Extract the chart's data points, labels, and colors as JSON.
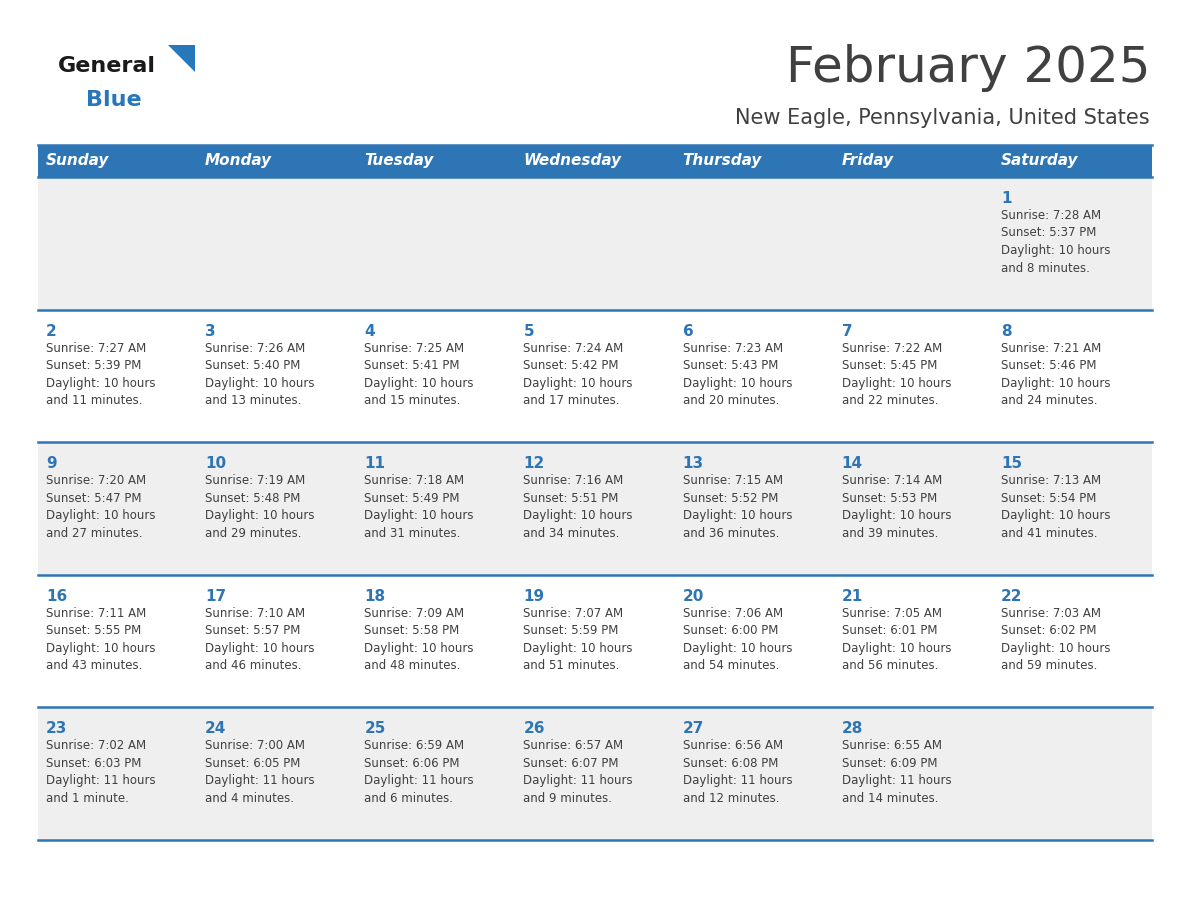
{
  "title": "February 2025",
  "subtitle": "New Eagle, Pennsylvania, United States",
  "header_bg_color": "#2E75B6",
  "header_text_color": "#FFFFFF",
  "day_names": [
    "Sunday",
    "Monday",
    "Tuesday",
    "Wednesday",
    "Thursday",
    "Friday",
    "Saturday"
  ],
  "bg_color": "#FFFFFF",
  "cell_bg_week1": "#F0F0F0",
  "cell_bg_week2": "#FFFFFF",
  "cell_bg_week3": "#F0F0F0",
  "cell_bg_week4": "#FFFFFF",
  "cell_bg_week5": "#F0F0F0",
  "text_color": "#404040",
  "day_num_color": "#2E75B6",
  "separator_color": "#2E75B6",
  "logo_general_color": "#1A1A1A",
  "logo_blue_color": "#2777BC",
  "title_fontsize": 36,
  "subtitle_fontsize": 15,
  "header_fontsize": 11,
  "day_num_fontsize": 11,
  "info_fontsize": 8.5,
  "weeks": [
    [
      {
        "day": null,
        "info": null
      },
      {
        "day": null,
        "info": null
      },
      {
        "day": null,
        "info": null
      },
      {
        "day": null,
        "info": null
      },
      {
        "day": null,
        "info": null
      },
      {
        "day": null,
        "info": null
      },
      {
        "day": 1,
        "info": "Sunrise: 7:28 AM\nSunset: 5:37 PM\nDaylight: 10 hours\nand 8 minutes."
      }
    ],
    [
      {
        "day": 2,
        "info": "Sunrise: 7:27 AM\nSunset: 5:39 PM\nDaylight: 10 hours\nand 11 minutes."
      },
      {
        "day": 3,
        "info": "Sunrise: 7:26 AM\nSunset: 5:40 PM\nDaylight: 10 hours\nand 13 minutes."
      },
      {
        "day": 4,
        "info": "Sunrise: 7:25 AM\nSunset: 5:41 PM\nDaylight: 10 hours\nand 15 minutes."
      },
      {
        "day": 5,
        "info": "Sunrise: 7:24 AM\nSunset: 5:42 PM\nDaylight: 10 hours\nand 17 minutes."
      },
      {
        "day": 6,
        "info": "Sunrise: 7:23 AM\nSunset: 5:43 PM\nDaylight: 10 hours\nand 20 minutes."
      },
      {
        "day": 7,
        "info": "Sunrise: 7:22 AM\nSunset: 5:45 PM\nDaylight: 10 hours\nand 22 minutes."
      },
      {
        "day": 8,
        "info": "Sunrise: 7:21 AM\nSunset: 5:46 PM\nDaylight: 10 hours\nand 24 minutes."
      }
    ],
    [
      {
        "day": 9,
        "info": "Sunrise: 7:20 AM\nSunset: 5:47 PM\nDaylight: 10 hours\nand 27 minutes."
      },
      {
        "day": 10,
        "info": "Sunrise: 7:19 AM\nSunset: 5:48 PM\nDaylight: 10 hours\nand 29 minutes."
      },
      {
        "day": 11,
        "info": "Sunrise: 7:18 AM\nSunset: 5:49 PM\nDaylight: 10 hours\nand 31 minutes."
      },
      {
        "day": 12,
        "info": "Sunrise: 7:16 AM\nSunset: 5:51 PM\nDaylight: 10 hours\nand 34 minutes."
      },
      {
        "day": 13,
        "info": "Sunrise: 7:15 AM\nSunset: 5:52 PM\nDaylight: 10 hours\nand 36 minutes."
      },
      {
        "day": 14,
        "info": "Sunrise: 7:14 AM\nSunset: 5:53 PM\nDaylight: 10 hours\nand 39 minutes."
      },
      {
        "day": 15,
        "info": "Sunrise: 7:13 AM\nSunset: 5:54 PM\nDaylight: 10 hours\nand 41 minutes."
      }
    ],
    [
      {
        "day": 16,
        "info": "Sunrise: 7:11 AM\nSunset: 5:55 PM\nDaylight: 10 hours\nand 43 minutes."
      },
      {
        "day": 17,
        "info": "Sunrise: 7:10 AM\nSunset: 5:57 PM\nDaylight: 10 hours\nand 46 minutes."
      },
      {
        "day": 18,
        "info": "Sunrise: 7:09 AM\nSunset: 5:58 PM\nDaylight: 10 hours\nand 48 minutes."
      },
      {
        "day": 19,
        "info": "Sunrise: 7:07 AM\nSunset: 5:59 PM\nDaylight: 10 hours\nand 51 minutes."
      },
      {
        "day": 20,
        "info": "Sunrise: 7:06 AM\nSunset: 6:00 PM\nDaylight: 10 hours\nand 54 minutes."
      },
      {
        "day": 21,
        "info": "Sunrise: 7:05 AM\nSunset: 6:01 PM\nDaylight: 10 hours\nand 56 minutes."
      },
      {
        "day": 22,
        "info": "Sunrise: 7:03 AM\nSunset: 6:02 PM\nDaylight: 10 hours\nand 59 minutes."
      }
    ],
    [
      {
        "day": 23,
        "info": "Sunrise: 7:02 AM\nSunset: 6:03 PM\nDaylight: 11 hours\nand 1 minute."
      },
      {
        "day": 24,
        "info": "Sunrise: 7:00 AM\nSunset: 6:05 PM\nDaylight: 11 hours\nand 4 minutes."
      },
      {
        "day": 25,
        "info": "Sunrise: 6:59 AM\nSunset: 6:06 PM\nDaylight: 11 hours\nand 6 minutes."
      },
      {
        "day": 26,
        "info": "Sunrise: 6:57 AM\nSunset: 6:07 PM\nDaylight: 11 hours\nand 9 minutes."
      },
      {
        "day": 27,
        "info": "Sunrise: 6:56 AM\nSunset: 6:08 PM\nDaylight: 11 hours\nand 12 minutes."
      },
      {
        "day": 28,
        "info": "Sunrise: 6:55 AM\nSunset: 6:09 PM\nDaylight: 11 hours\nand 14 minutes."
      },
      {
        "day": null,
        "info": null
      }
    ]
  ],
  "week_bg_colors": [
    "#EFEFEF",
    "#FFFFFF",
    "#EFEFEF",
    "#FFFFFF",
    "#EFEFEF"
  ]
}
